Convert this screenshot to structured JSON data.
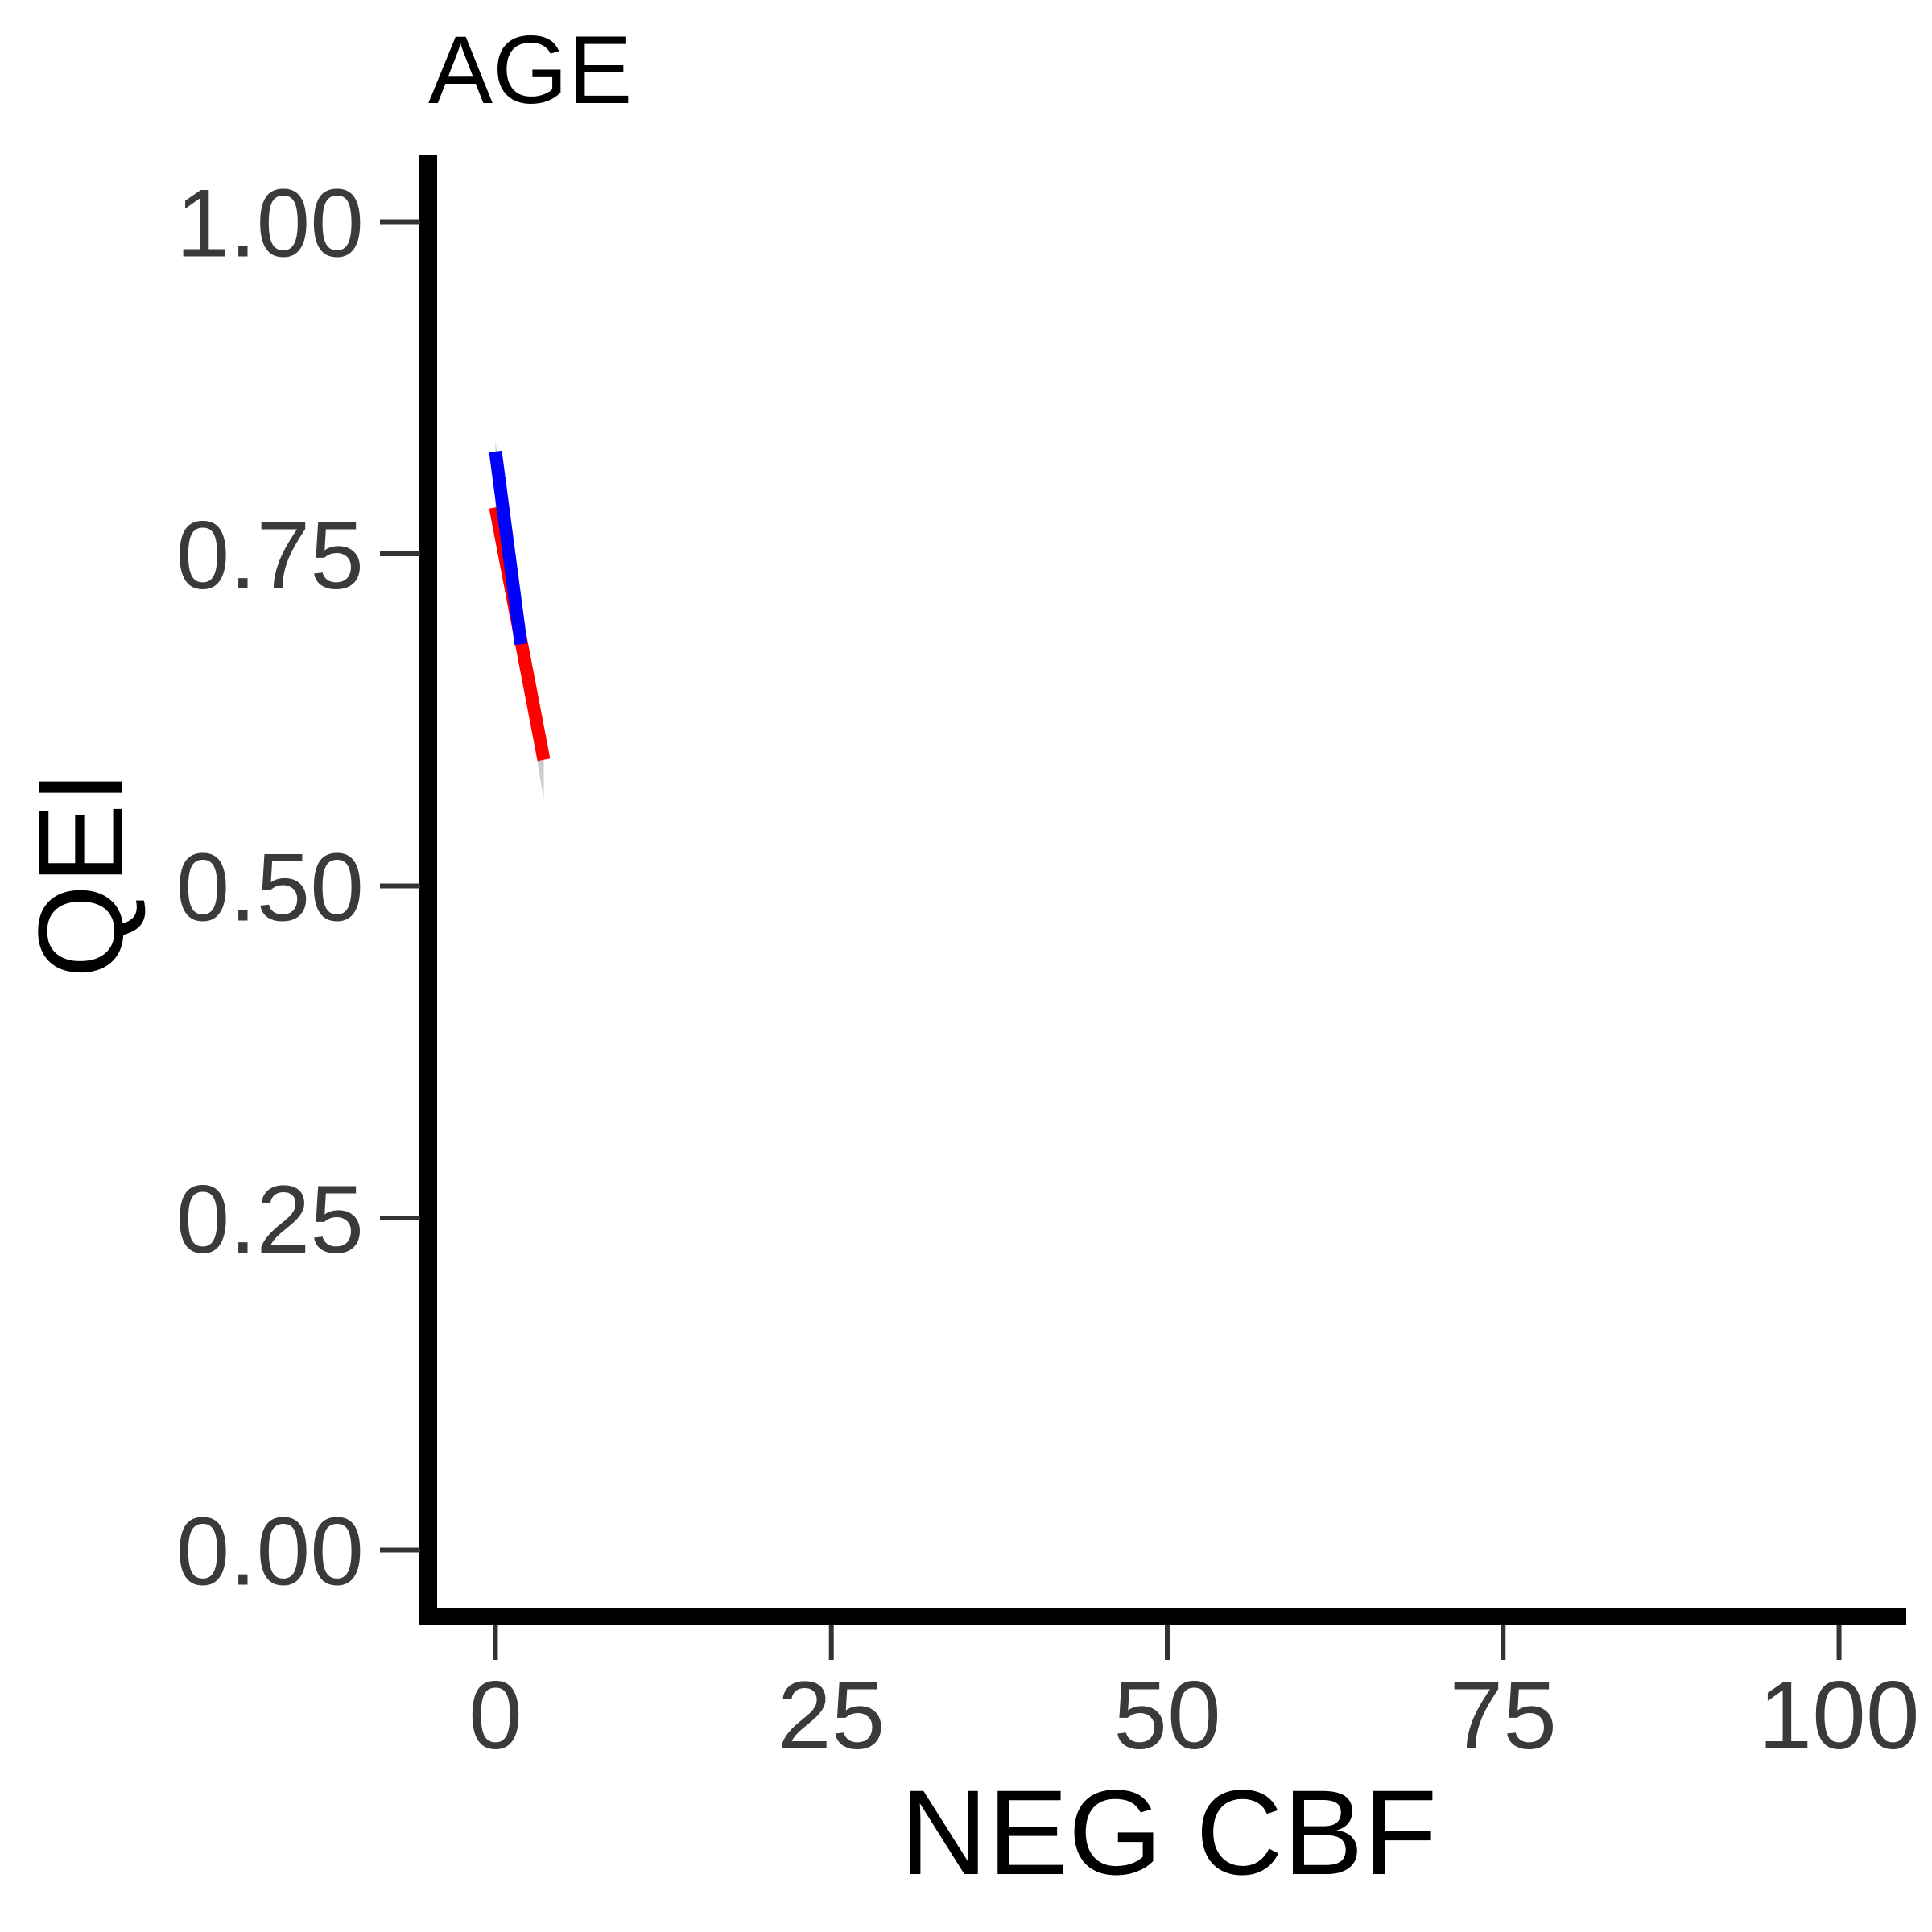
{
  "chart_data": {
    "type": "line",
    "title": "AGE",
    "xlabel": "NEG CBF",
    "ylabel": "QEI",
    "xlim": [
      -5,
      105
    ],
    "ylim": [
      -0.05,
      1.05
    ],
    "x_ticks": [
      "0",
      "25",
      "50",
      "75",
      "100"
    ],
    "x_tick_values": [
      0,
      25,
      50,
      75,
      100
    ],
    "y_ticks": [
      "0.00",
      "0.25",
      "0.50",
      "0.75",
      "1.00"
    ],
    "y_tick_values": [
      0,
      0.25,
      0.5,
      0.75,
      1.0
    ],
    "grid": false,
    "legend": "none",
    "series": [
      {
        "color": "#ff0000",
        "x": [
          0,
          3.6
        ],
        "y": [
          0.785,
          0.595
        ],
        "ci_lower": [
          0.78,
          0.565
        ],
        "ci_upper": [
          0.79,
          0.6
        ]
      },
      {
        "color": "#0000ff",
        "x": [
          0,
          1.9
        ],
        "y": [
          0.827,
          0.682
        ],
        "ci_lower": [
          0.82,
          0.675
        ],
        "ci_upper": [
          0.835,
          0.69
        ]
      }
    ],
    "ribbon_color": "#bfbfbf"
  }
}
